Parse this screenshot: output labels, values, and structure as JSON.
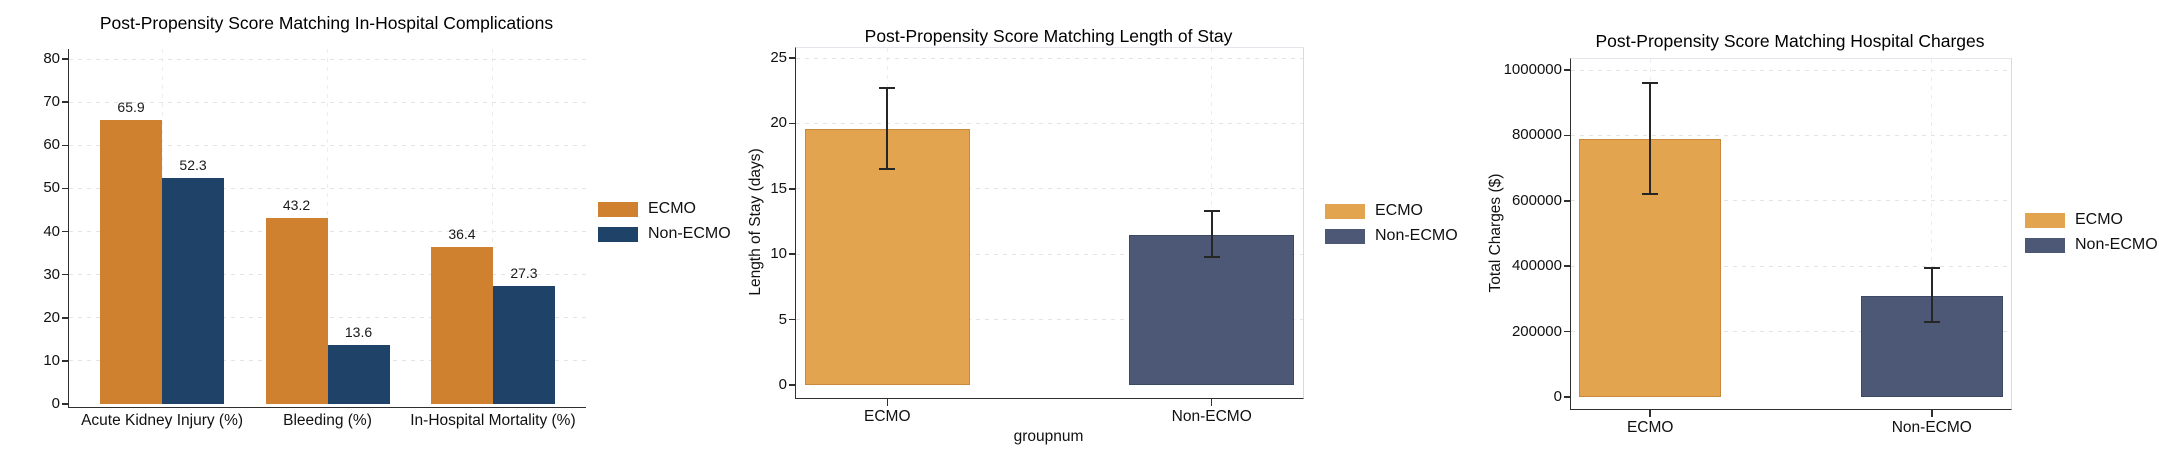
{
  "canvas": {
    "background": "#ffffff"
  },
  "chart_data": [
    {
      "type": "bar",
      "title": "Post-Propensity Score Matching In-Hospital Complications",
      "xlabel": "",
      "ylabel": "",
      "categories": [
        "Acute Kidney Injury (%)",
        "Bleeding (%)",
        "In-Hospital Mortality (%)"
      ],
      "series": [
        {
          "name": "ECMO",
          "color": "#D0812F",
          "values": [
            65.9,
            43.2,
            36.4
          ]
        },
        {
          "name": "Non-ECMO",
          "color": "#1F4268",
          "values": [
            52.3,
            13.6,
            27.3
          ]
        }
      ],
      "value_labels": [
        [
          "65.9",
          "43.2",
          "36.4"
        ],
        [
          "52.3",
          "13.6",
          "27.3"
        ]
      ],
      "ylim": [
        0,
        80
      ],
      "yticks": [
        0,
        10,
        20,
        30,
        40,
        50,
        60,
        70,
        80
      ],
      "grid": "dashed-horizontal-and-vertical",
      "legend_position": "right",
      "legend_entries": [
        {
          "label": "ECMO",
          "color": "#D0812F"
        },
        {
          "label": "Non-ECMO",
          "color": "#1F4268"
        }
      ]
    },
    {
      "type": "bar",
      "title": "Post-Propensity Score Matching Length of Stay",
      "xlabel": "groupnum",
      "ylabel": "Length of Stay (days)",
      "categories": [
        "ECMO",
        "Non-ECMO"
      ],
      "values": [
        19.6,
        11.5
      ],
      "error_low": [
        16.5,
        9.8
      ],
      "error_high": [
        22.7,
        13.3
      ],
      "bar_colors": [
        "#E2A44E",
        "#4D5877"
      ],
      "bar_borders": [
        "#C8893C",
        "#3C4963"
      ],
      "ylim": [
        0,
        25
      ],
      "yticks": [
        0,
        5,
        10,
        15,
        20,
        25
      ],
      "grid": "dashed-horizontal-and-vertical",
      "legend_position": "right",
      "legend_entries": [
        {
          "label": "ECMO",
          "color": "#E2A44E"
        },
        {
          "label": "Non-ECMO",
          "color": "#4D5877"
        }
      ]
    },
    {
      "type": "bar",
      "title": "Post-Propensity Score Matching Hospital Charges",
      "xlabel": "",
      "ylabel": "Total Charges ($)",
      "categories": [
        "ECMO",
        "Non-ECMO"
      ],
      "values": [
        790000,
        310000
      ],
      "error_low": [
        620000,
        230000
      ],
      "error_high": [
        960000,
        395000
      ],
      "bar_colors": [
        "#E2A44E",
        "#4D5877"
      ],
      "bar_borders": [
        "#C8893C",
        "#3C4963"
      ],
      "ylim": [
        0,
        1000000
      ],
      "yticks": [
        0,
        200000,
        400000,
        600000,
        800000,
        1000000
      ],
      "grid": "dashed-horizontal-and-vertical",
      "legend_position": "right",
      "legend_entries": [
        {
          "label": "ECMO",
          "color": "#E2A44E"
        },
        {
          "label": "Non-ECMO",
          "color": "#4D5877"
        }
      ]
    }
  ]
}
